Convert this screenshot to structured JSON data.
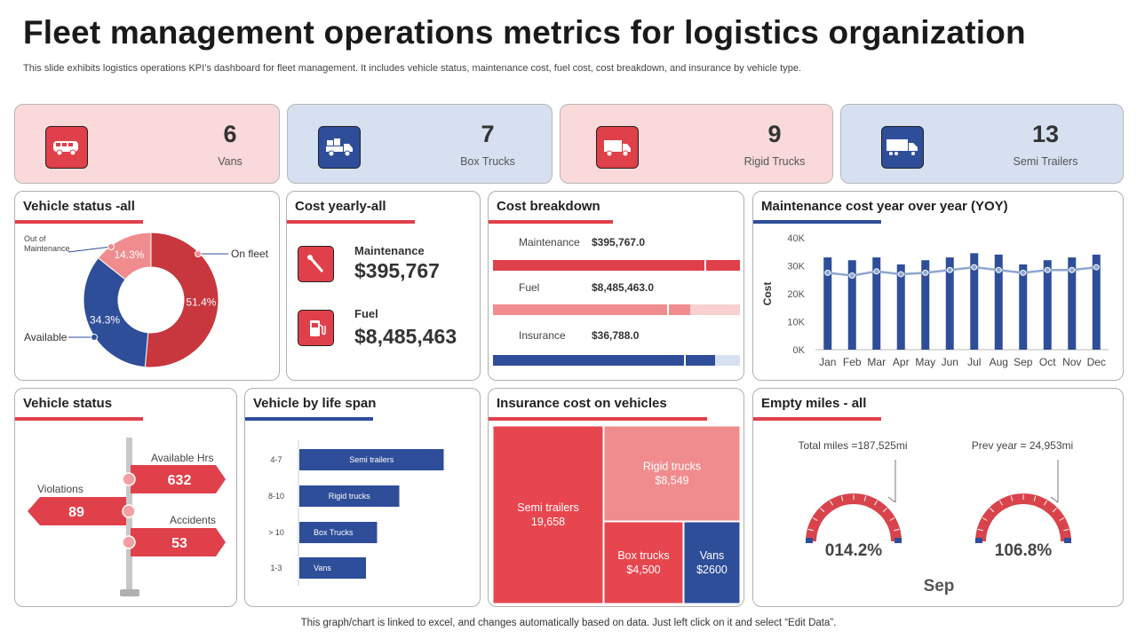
{
  "header": {
    "title": "Fleet management operations metrics for logistics organization",
    "subtitle": "This slide exhibits logistics operations KPI’s dashboard for fleet management. It includes vehicle status, maintenance cost, fuel cost, cost breakdown, and insurance by vehicle type."
  },
  "kpis": [
    {
      "value": "6",
      "label": "Vans",
      "icon": "van-icon"
    },
    {
      "value": "7",
      "label": "Box Trucks",
      "icon": "box-truck-icon"
    },
    {
      "value": "9",
      "label": "Rigid Trucks",
      "icon": "rigid-truck-icon"
    },
    {
      "value": "13",
      "label": "Semi Trailers",
      "icon": "semi-trailer-icon"
    }
  ],
  "vehicle_status_all": {
    "title": "Vehicle status -all",
    "labels": {
      "out": "Out of\nMaintenance",
      "out_line1": "Out of",
      "out_line2": "Maintenance",
      "on_fleet": "On fleet",
      "available": "Available"
    },
    "slice_labels": [
      "51.4%",
      "34.3%",
      "14.3%"
    ]
  },
  "cost_yearly": {
    "title": "Cost yearly-all",
    "maintenance_label": "Maintenance",
    "maintenance_value": "$395,767",
    "fuel_label": "Fuel",
    "fuel_value": "$8,485,463"
  },
  "cost_breakdown": {
    "title": "Cost breakdown",
    "rows": [
      {
        "label": "Maintenance",
        "value": "$395,767.0"
      },
      {
        "label": "Fuel",
        "value": "$8,485,463.0"
      },
      {
        "label": "Insurance",
        "value": "$36,788.0"
      }
    ]
  },
  "maintenance_yoy": {
    "title": "Maintenance cost year over year (YOY)",
    "ylabel": "Cost",
    "yticks": [
      "0K",
      "10K",
      "20K",
      "30K",
      "40K"
    ]
  },
  "vehicle_status": {
    "title": "Vehicle status",
    "available_label": "Available Hrs",
    "available_value": "632",
    "violations_label": "Violations",
    "violations_value": "89",
    "accidents_label": "Accidents",
    "accidents_value": "53"
  },
  "life_span": {
    "title": "Vehicle by life span"
  },
  "insurance": {
    "title": "Insurance cost on vehicles"
  },
  "empty_miles": {
    "title": "Empty miles - all",
    "total_label": "Total miles =187,525mi",
    "total_pct": "014.2%",
    "prev_label": "Prev year = 24,953mi",
    "prev_pct": "106.8%",
    "month": "Sep"
  },
  "footer": "This graph/chart is linked to excel,  and changes automatically based on data. Just left click on it and select “Edit Data”.",
  "colors": {
    "red": "#e0404a",
    "pink": "#f08c8e",
    "navy": "#2e4e9a",
    "light_pink": "#f9d9d9",
    "light_blue": "#d6e0f1"
  },
  "chart_data": [
    {
      "type": "pie",
      "id": "vehicle-status-donut",
      "categories": [
        "On fleet",
        "Available",
        "Out of Maintenance"
      ],
      "values": [
        51.4,
        34.3,
        14.3
      ]
    },
    {
      "type": "bar",
      "id": "cost-breakdown",
      "categories": [
        "Maintenance",
        "Fuel",
        "Insurance"
      ],
      "values": [
        395767.0,
        8485463.0,
        36788.0
      ]
    },
    {
      "type": "bar",
      "id": "maintenance-yoy",
      "categories": [
        "Jan",
        "Feb",
        "Mar",
        "Apr",
        "May",
        "Jun",
        "Jul",
        "Aug",
        "Sep",
        "Oct",
        "Nov",
        "Dec"
      ],
      "series": [
        {
          "values": [
            33000,
            32000,
            33000,
            30500,
            32000,
            33000,
            34500,
            34000,
            30500,
            32000,
            33000,
            34000
          ]
        },
        {
          "values": [
            27500,
            26500,
            28000,
            27000,
            27500,
            28500,
            29500,
            28500,
            27500,
            28500,
            28500,
            29500
          ]
        }
      ],
      "ylabel": "Cost",
      "ylim": [
        0,
        40000
      ]
    },
    {
      "type": "bar",
      "id": "vehicle-life-span",
      "categories": [
        "4-7",
        "8-10",
        "> 10",
        "1-3"
      ],
      "series": [
        {
          "values": [
            13,
            9,
            7,
            6
          ]
        }
      ],
      "bar_labels": [
        "Semi trailers",
        "Rigid trucks",
        "Box Trucks",
        "Vans"
      ]
    },
    {
      "type": "heatmap",
      "id": "insurance-treemap",
      "categories": [
        "Semi trailers",
        "Rigid trucks",
        "Box trucks",
        "Vans"
      ],
      "values": [
        19658,
        8549,
        4500,
        2600
      ],
      "value_labels": [
        "19,658",
        "$8,549",
        "$4,500",
        "$2600"
      ]
    }
  ]
}
